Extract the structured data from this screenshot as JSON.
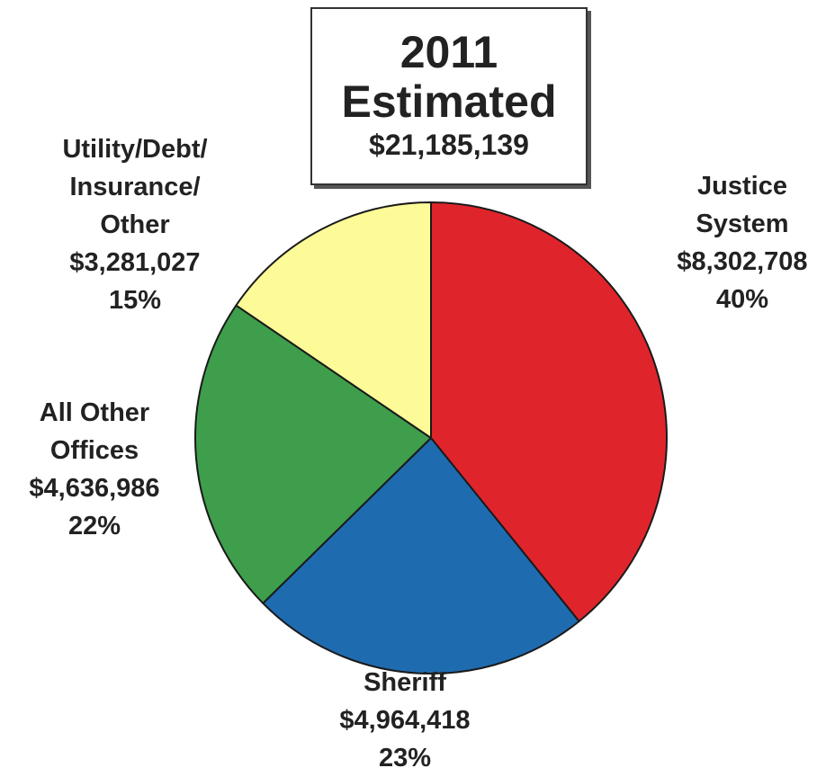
{
  "chart_data": {
    "type": "pie",
    "title": "2011",
    "subtitle": "Estimated",
    "total_label": "$21,185,139",
    "slices": [
      {
        "name_lines": [
          "Justice",
          "System"
        ],
        "value": 8302708,
        "value_label": "$8,302,708",
        "percent": 40,
        "percent_label": "40%",
        "color": "#e0242b"
      },
      {
        "name_lines": [
          "Sheriff"
        ],
        "value": 4964418,
        "value_label": "$4,964,418",
        "percent": 23,
        "percent_label": "23%",
        "color": "#1f6bb0"
      },
      {
        "name_lines": [
          "All Other",
          "Offices"
        ],
        "value": 4636986,
        "value_label": "$4,636,986",
        "percent": 22,
        "percent_label": "22%",
        "color": "#3e9e4b"
      },
      {
        "name_lines": [
          "Utility/Debt/",
          "Insurance/",
          "Other"
        ],
        "value": 3281027,
        "value_label": "$3,281,027",
        "percent": 15,
        "percent_label": "15%",
        "color": "#fdfb98"
      }
    ]
  }
}
